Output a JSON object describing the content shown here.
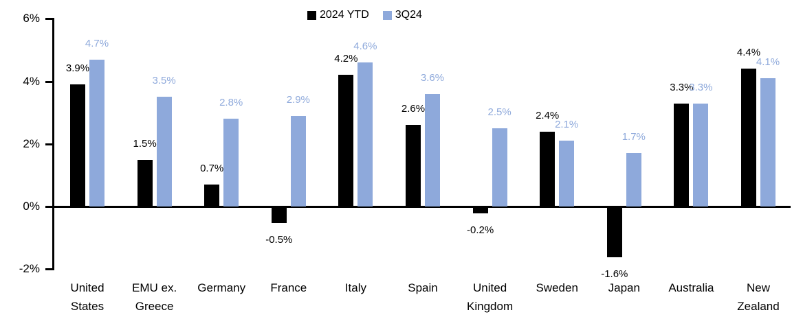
{
  "chart_data": {
    "type": "bar",
    "title": "",
    "xlabel": "",
    "ylabel": "",
    "grid": false,
    "legend_position": "top-center",
    "categories": [
      "United States",
      "EMU ex. Greece",
      "Germany",
      "France",
      "Italy",
      "Spain",
      "United Kingdom",
      "Sweden",
      "Japan",
      "Australia",
      "New Zealand"
    ],
    "category_lines": [
      [
        "United",
        "States"
      ],
      [
        "EMU ex.",
        "Greece"
      ],
      [
        "Germany"
      ],
      [
        "France"
      ],
      [
        "Italy"
      ],
      [
        "Spain"
      ],
      [
        "United",
        "Kingdom"
      ],
      [
        "Sweden"
      ],
      [
        "Japan"
      ],
      [
        "Australia"
      ],
      [
        "New",
        "Zealand"
      ]
    ],
    "series": [
      {
        "name": "2024 YTD",
        "color": "#000000",
        "label_color": "#000000",
        "values": [
          3.9,
          1.5,
          0.7,
          -0.5,
          4.2,
          2.6,
          -0.2,
          2.4,
          -1.6,
          3.3,
          4.4
        ],
        "labels": [
          "3.9%",
          "1.5%",
          "0.7%",
          "-0.5%",
          "4.2%",
          "2.6%",
          "-0.2%",
          "2.4%",
          "-1.6%",
          "3.3%",
          "4.4%"
        ]
      },
      {
        "name": "3Q24",
        "color": "#8EA9DB",
        "label_color": "#8EA9DB",
        "values": [
          4.7,
          3.5,
          2.8,
          2.9,
          4.6,
          3.6,
          2.5,
          2.1,
          1.7,
          3.3,
          4.1
        ],
        "labels": [
          "4.7%",
          "3.5%",
          "2.8%",
          "2.9%",
          "4.6%",
          "3.6%",
          "2.5%",
          "2.1%",
          "1.7%",
          "3.3%",
          "4.1%"
        ]
      }
    ],
    "y_axis": {
      "min": -2,
      "max": 6,
      "ticks": [
        {
          "value": 6,
          "label": "6%"
        },
        {
          "value": 4,
          "label": "4%"
        },
        {
          "value": 2,
          "label": "2%"
        },
        {
          "value": 0,
          "label": "0%"
        },
        {
          "value": -2,
          "label": "-2%"
        }
      ]
    }
  }
}
